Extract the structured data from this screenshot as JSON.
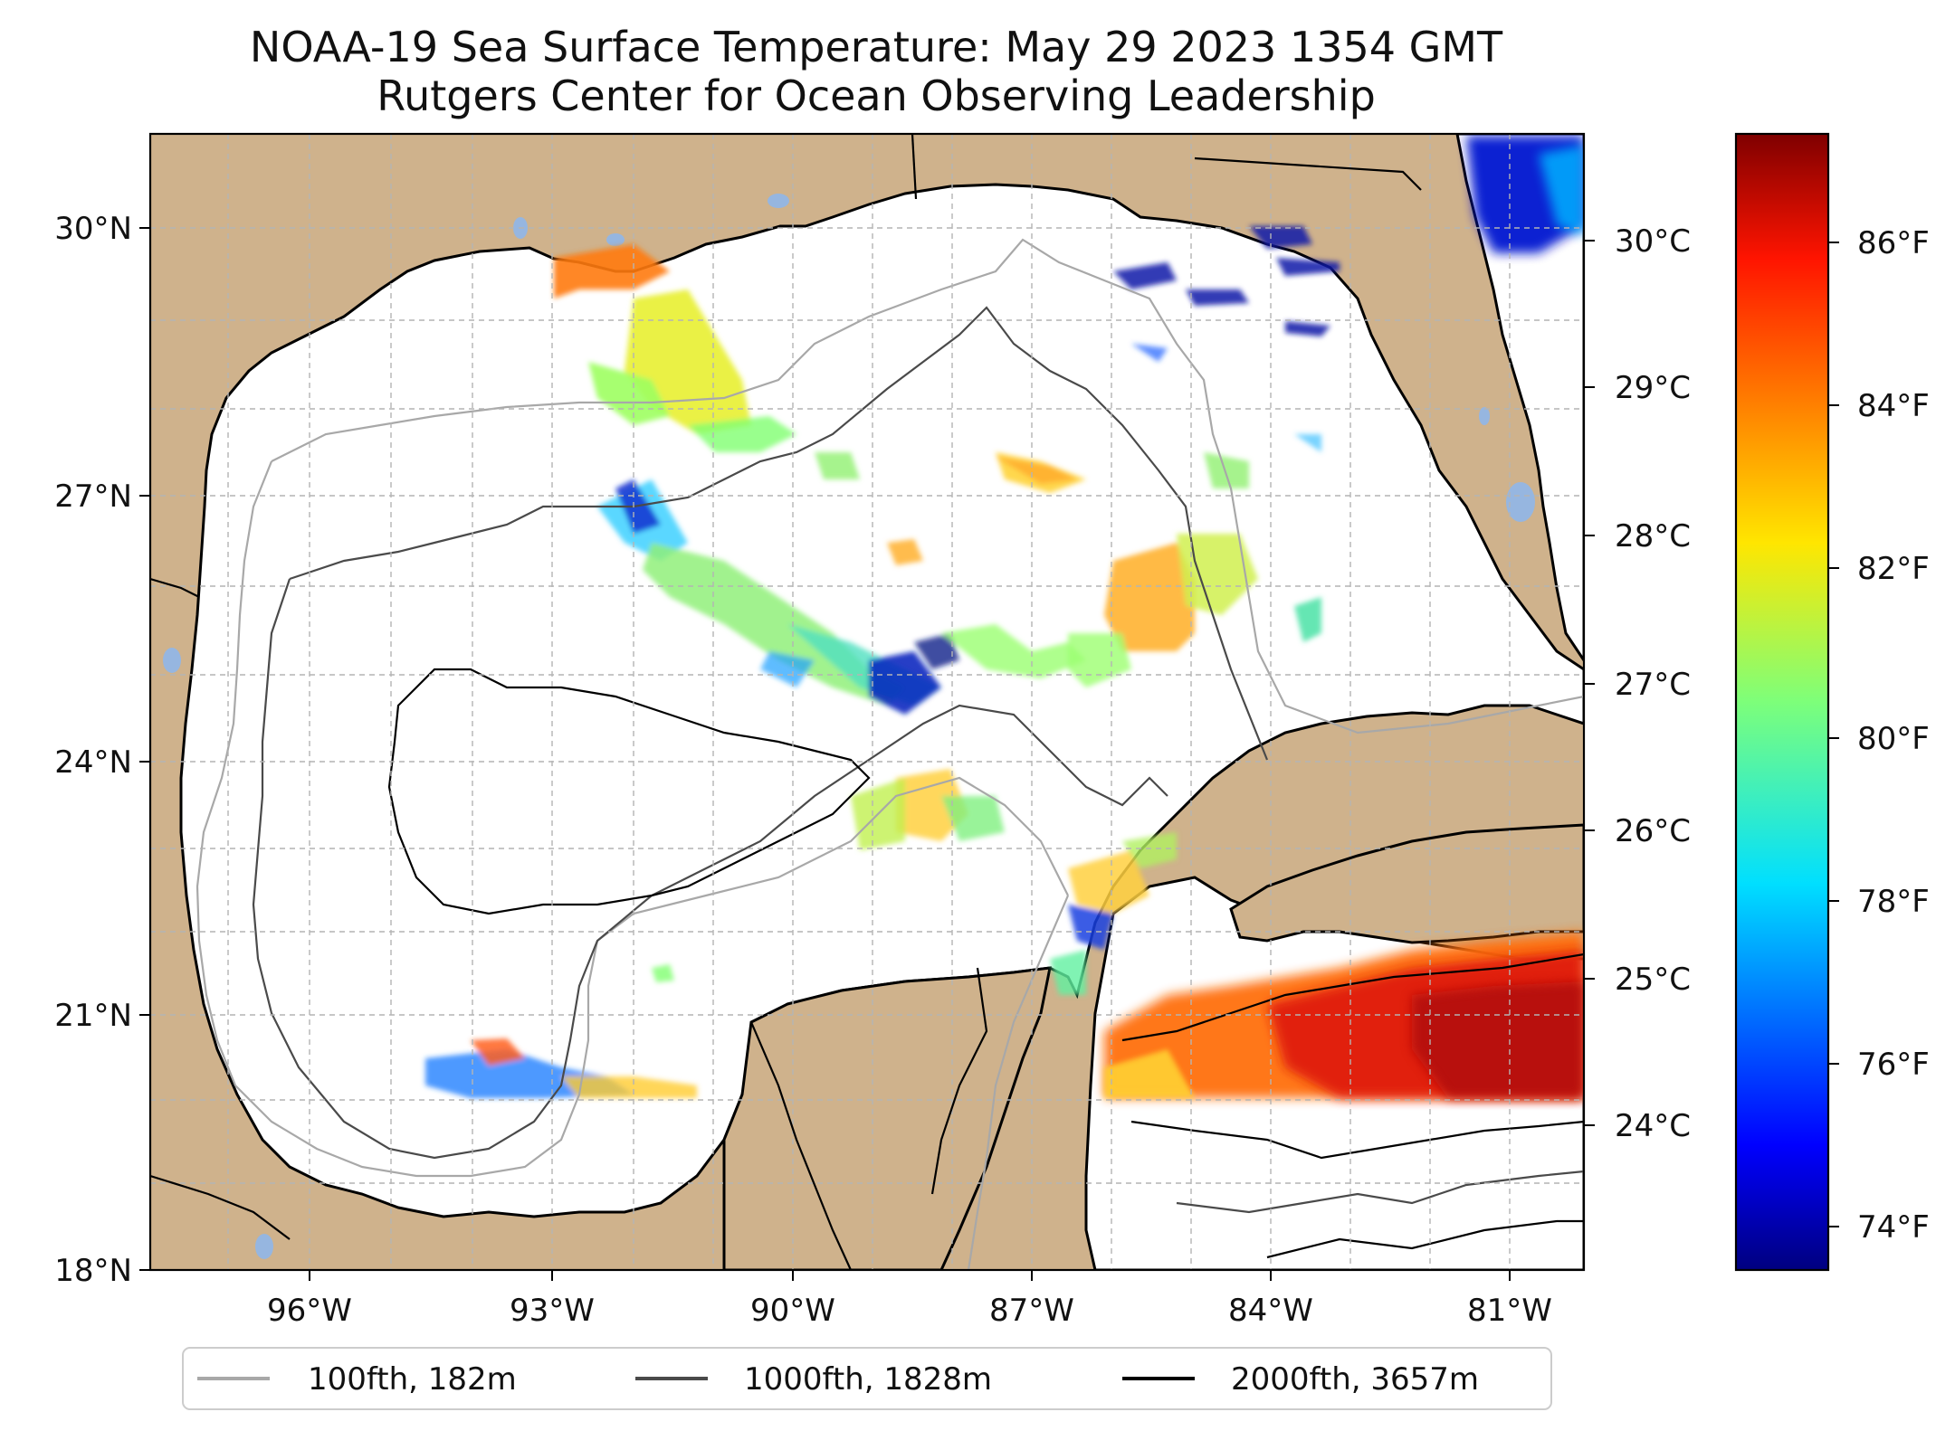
{
  "title": {
    "line1": "NOAA-19 Sea Surface Temperature: May 29 2023 1354 GMT",
    "line2": "Rutgers Center for Ocean Observing Leadership"
  },
  "map": {
    "lon_range": [
      -98.4,
      -79.4
    ],
    "lat_range": [
      18,
      31
    ],
    "x_ticks": [
      "96°W",
      "93°W",
      "90°W",
      "87°W",
      "84°W",
      "81°W"
    ],
    "y_ticks": [
      "18°N",
      "21°N",
      "24°N",
      "27°N",
      "30°N"
    ],
    "colors": {
      "land": "#cfb28c",
      "ocean": "#ffffff",
      "lakes": "#96b6e0",
      "grid": "#b4b4b4"
    }
  },
  "colorbar": {
    "celsius_ticks": [
      "24°C",
      "25°C",
      "26°C",
      "27°C",
      "28°C",
      "29°C",
      "30°C"
    ],
    "fahrenheit_ticks": [
      "74°F",
      "76°F",
      "78°F",
      "80°F",
      "82°F",
      "84°F",
      "86°F"
    ],
    "colormap": "jet",
    "range_f": [
      73.4,
      87.4
    ]
  },
  "legend": {
    "items": [
      {
        "label": "100fth, 182m",
        "color": "#a8a8a8"
      },
      {
        "label": "1000fth, 1828m",
        "color": "#4a4a4a"
      },
      {
        "label": "2000fth, 3657m",
        "color": "#000000"
      }
    ]
  }
}
